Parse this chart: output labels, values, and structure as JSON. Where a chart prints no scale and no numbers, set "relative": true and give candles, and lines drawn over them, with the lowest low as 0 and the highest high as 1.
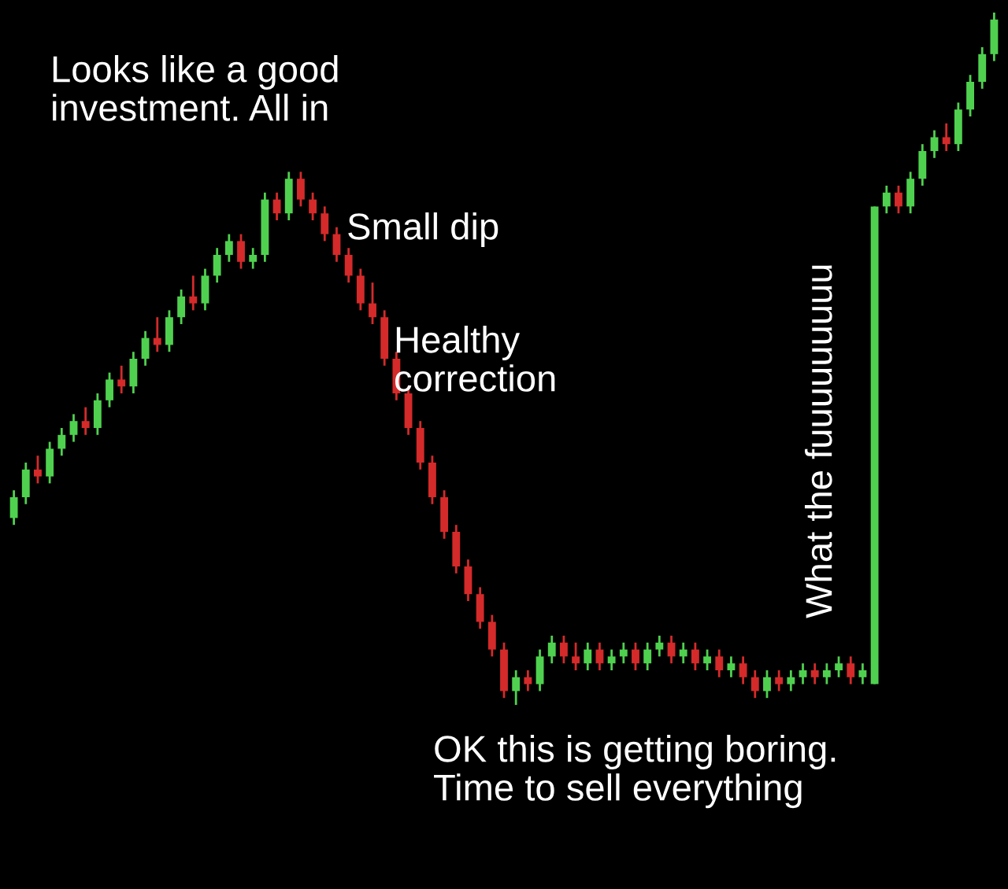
{
  "chart_data": {
    "type": "candlestick",
    "relative": true,
    "categories": [
      null,
      null,
      null,
      null,
      null,
      null,
      null,
      null,
      null,
      null,
      null,
      null,
      null,
      null,
      null,
      null,
      null,
      null,
      null,
      null,
      null,
      null,
      null,
      null,
      null,
      null,
      null,
      null,
      null,
      null,
      null,
      null,
      null,
      null,
      null,
      null,
      null,
      null,
      null,
      null,
      null,
      null,
      null,
      null,
      null,
      null,
      null,
      null,
      null,
      null,
      null,
      null,
      null,
      null,
      null,
      null,
      null,
      null,
      null,
      null,
      null,
      null,
      null,
      null,
      null,
      null,
      null,
      null,
      null,
      null,
      null,
      null,
      null,
      null,
      null,
      null,
      null,
      null,
      null,
      null,
      null,
      null,
      null
    ],
    "ohlc": [
      [
        0.27,
        0.31,
        0.26,
        0.3
      ],
      [
        0.3,
        0.35,
        0.29,
        0.34
      ],
      [
        0.34,
        0.36,
        0.32,
        0.33
      ],
      [
        0.33,
        0.38,
        0.32,
        0.37
      ],
      [
        0.37,
        0.4,
        0.36,
        0.39
      ],
      [
        0.39,
        0.42,
        0.38,
        0.41
      ],
      [
        0.41,
        0.43,
        0.39,
        0.4
      ],
      [
        0.4,
        0.45,
        0.39,
        0.44
      ],
      [
        0.44,
        0.48,
        0.43,
        0.47
      ],
      [
        0.47,
        0.49,
        0.45,
        0.46
      ],
      [
        0.46,
        0.51,
        0.45,
        0.5
      ],
      [
        0.5,
        0.54,
        0.49,
        0.53
      ],
      [
        0.53,
        0.56,
        0.51,
        0.52
      ],
      [
        0.52,
        0.57,
        0.51,
        0.56
      ],
      [
        0.56,
        0.6,
        0.55,
        0.59
      ],
      [
        0.59,
        0.62,
        0.57,
        0.58
      ],
      [
        0.58,
        0.63,
        0.57,
        0.62
      ],
      [
        0.62,
        0.66,
        0.61,
        0.65
      ],
      [
        0.65,
        0.68,
        0.64,
        0.67
      ],
      [
        0.67,
        0.68,
        0.63,
        0.64
      ],
      [
        0.64,
        0.66,
        0.63,
        0.65
      ],
      [
        0.65,
        0.74,
        0.64,
        0.73
      ],
      [
        0.73,
        0.74,
        0.7,
        0.71
      ],
      [
        0.71,
        0.77,
        0.7,
        0.76
      ],
      [
        0.76,
        0.77,
        0.72,
        0.73
      ],
      [
        0.73,
        0.74,
        0.7,
        0.71
      ],
      [
        0.71,
        0.72,
        0.67,
        0.68
      ],
      [
        0.68,
        0.69,
        0.64,
        0.65
      ],
      [
        0.65,
        0.66,
        0.61,
        0.62
      ],
      [
        0.62,
        0.63,
        0.57,
        0.58
      ],
      [
        0.58,
        0.61,
        0.55,
        0.56
      ],
      [
        0.56,
        0.57,
        0.49,
        0.5
      ],
      [
        0.5,
        0.51,
        0.44,
        0.45
      ],
      [
        0.45,
        0.46,
        0.39,
        0.4
      ],
      [
        0.4,
        0.41,
        0.34,
        0.35
      ],
      [
        0.35,
        0.36,
        0.29,
        0.3
      ],
      [
        0.3,
        0.31,
        0.24,
        0.25
      ],
      [
        0.25,
        0.26,
        0.19,
        0.2
      ],
      [
        0.2,
        0.21,
        0.15,
        0.16
      ],
      [
        0.16,
        0.17,
        0.11,
        0.12
      ],
      [
        0.12,
        0.13,
        0.07,
        0.08
      ],
      [
        0.08,
        0.09,
        0.01,
        0.02
      ],
      [
        0.02,
        0.05,
        0.0,
        0.04
      ],
      [
        0.04,
        0.05,
        0.02,
        0.03
      ],
      [
        0.03,
        0.08,
        0.02,
        0.07
      ],
      [
        0.07,
        0.1,
        0.06,
        0.09
      ],
      [
        0.09,
        0.1,
        0.06,
        0.07
      ],
      [
        0.07,
        0.09,
        0.05,
        0.06
      ],
      [
        0.06,
        0.09,
        0.05,
        0.08
      ],
      [
        0.08,
        0.09,
        0.05,
        0.06
      ],
      [
        0.06,
        0.08,
        0.05,
        0.07
      ],
      [
        0.07,
        0.09,
        0.06,
        0.08
      ],
      [
        0.08,
        0.09,
        0.05,
        0.06
      ],
      [
        0.06,
        0.09,
        0.05,
        0.08
      ],
      [
        0.08,
        0.1,
        0.07,
        0.09
      ],
      [
        0.09,
        0.1,
        0.06,
        0.07
      ],
      [
        0.07,
        0.09,
        0.06,
        0.08
      ],
      [
        0.08,
        0.09,
        0.05,
        0.06
      ],
      [
        0.06,
        0.08,
        0.05,
        0.07
      ],
      [
        0.07,
        0.08,
        0.04,
        0.05
      ],
      [
        0.05,
        0.07,
        0.04,
        0.06
      ],
      [
        0.06,
        0.07,
        0.03,
        0.04
      ],
      [
        0.04,
        0.05,
        0.01,
        0.02
      ],
      [
        0.02,
        0.05,
        0.01,
        0.04
      ],
      [
        0.04,
        0.05,
        0.02,
        0.03
      ],
      [
        0.03,
        0.05,
        0.02,
        0.04
      ],
      [
        0.04,
        0.06,
        0.03,
        0.05
      ],
      [
        0.05,
        0.06,
        0.03,
        0.04
      ],
      [
        0.04,
        0.06,
        0.03,
        0.05
      ],
      [
        0.05,
        0.07,
        0.04,
        0.06
      ],
      [
        0.06,
        0.07,
        0.03,
        0.04
      ],
      [
        0.04,
        0.06,
        0.03,
        0.05
      ],
      [
        0.03,
        0.72,
        0.03,
        0.72
      ],
      [
        0.72,
        0.75,
        0.71,
        0.74
      ],
      [
        0.74,
        0.75,
        0.71,
        0.72
      ],
      [
        0.72,
        0.77,
        0.71,
        0.76
      ],
      [
        0.76,
        0.81,
        0.75,
        0.8
      ],
      [
        0.8,
        0.83,
        0.79,
        0.82
      ],
      [
        0.82,
        0.84,
        0.8,
        0.81
      ],
      [
        0.81,
        0.87,
        0.8,
        0.86
      ],
      [
        0.86,
        0.91,
        0.85,
        0.9
      ],
      [
        0.9,
        0.95,
        0.89,
        0.94
      ],
      [
        0.94,
        1.0,
        0.93,
        0.99
      ]
    ],
    "colors": [
      "#4fd14f",
      "#4fd14f",
      "#d42a2a",
      "#4fd14f",
      "#4fd14f",
      "#4fd14f",
      "#d42a2a",
      "#4fd14f",
      "#4fd14f",
      "#d42a2a",
      "#4fd14f",
      "#4fd14f",
      "#d42a2a",
      "#4fd14f",
      "#4fd14f",
      "#d42a2a",
      "#4fd14f",
      "#4fd14f",
      "#4fd14f",
      "#d42a2a",
      "#4fd14f",
      "#4fd14f",
      "#d42a2a",
      "#4fd14f",
      "#d42a2a",
      "#d42a2a",
      "#d42a2a",
      "#d42a2a",
      "#d42a2a",
      "#d42a2a",
      "#d42a2a",
      "#d42a2a",
      "#d42a2a",
      "#d42a2a",
      "#d42a2a",
      "#d42a2a",
      "#d42a2a",
      "#d42a2a",
      "#d42a2a",
      "#d42a2a",
      "#d42a2a",
      "#d42a2a",
      "#4fd14f",
      "#d42a2a",
      "#4fd14f",
      "#4fd14f",
      "#d42a2a",
      "#d42a2a",
      "#4fd14f",
      "#d42a2a",
      "#4fd14f",
      "#4fd14f",
      "#d42a2a",
      "#4fd14f",
      "#4fd14f",
      "#d42a2a",
      "#4fd14f",
      "#d42a2a",
      "#4fd14f",
      "#d42a2a",
      "#4fd14f",
      "#d42a2a",
      "#d42a2a",
      "#4fd14f",
      "#d42a2a",
      "#4fd14f",
      "#4fd14f",
      "#d42a2a",
      "#4fd14f",
      "#4fd14f",
      "#d42a2a",
      "#4fd14f",
      "#4fd14f",
      "#4fd14f",
      "#d42a2a",
      "#4fd14f",
      "#4fd14f",
      "#4fd14f",
      "#d42a2a",
      "#4fd14f",
      "#4fd14f",
      "#4fd14f",
      "#4fd14f"
    ],
    "annotations": [
      "Looks like a good\ninvestment. All in",
      "Small dip",
      "Healthy\ncorrection",
      "OK this is getting boring.\nTime to sell everything",
      "What the fuuuuuuuuu"
    ]
  }
}
